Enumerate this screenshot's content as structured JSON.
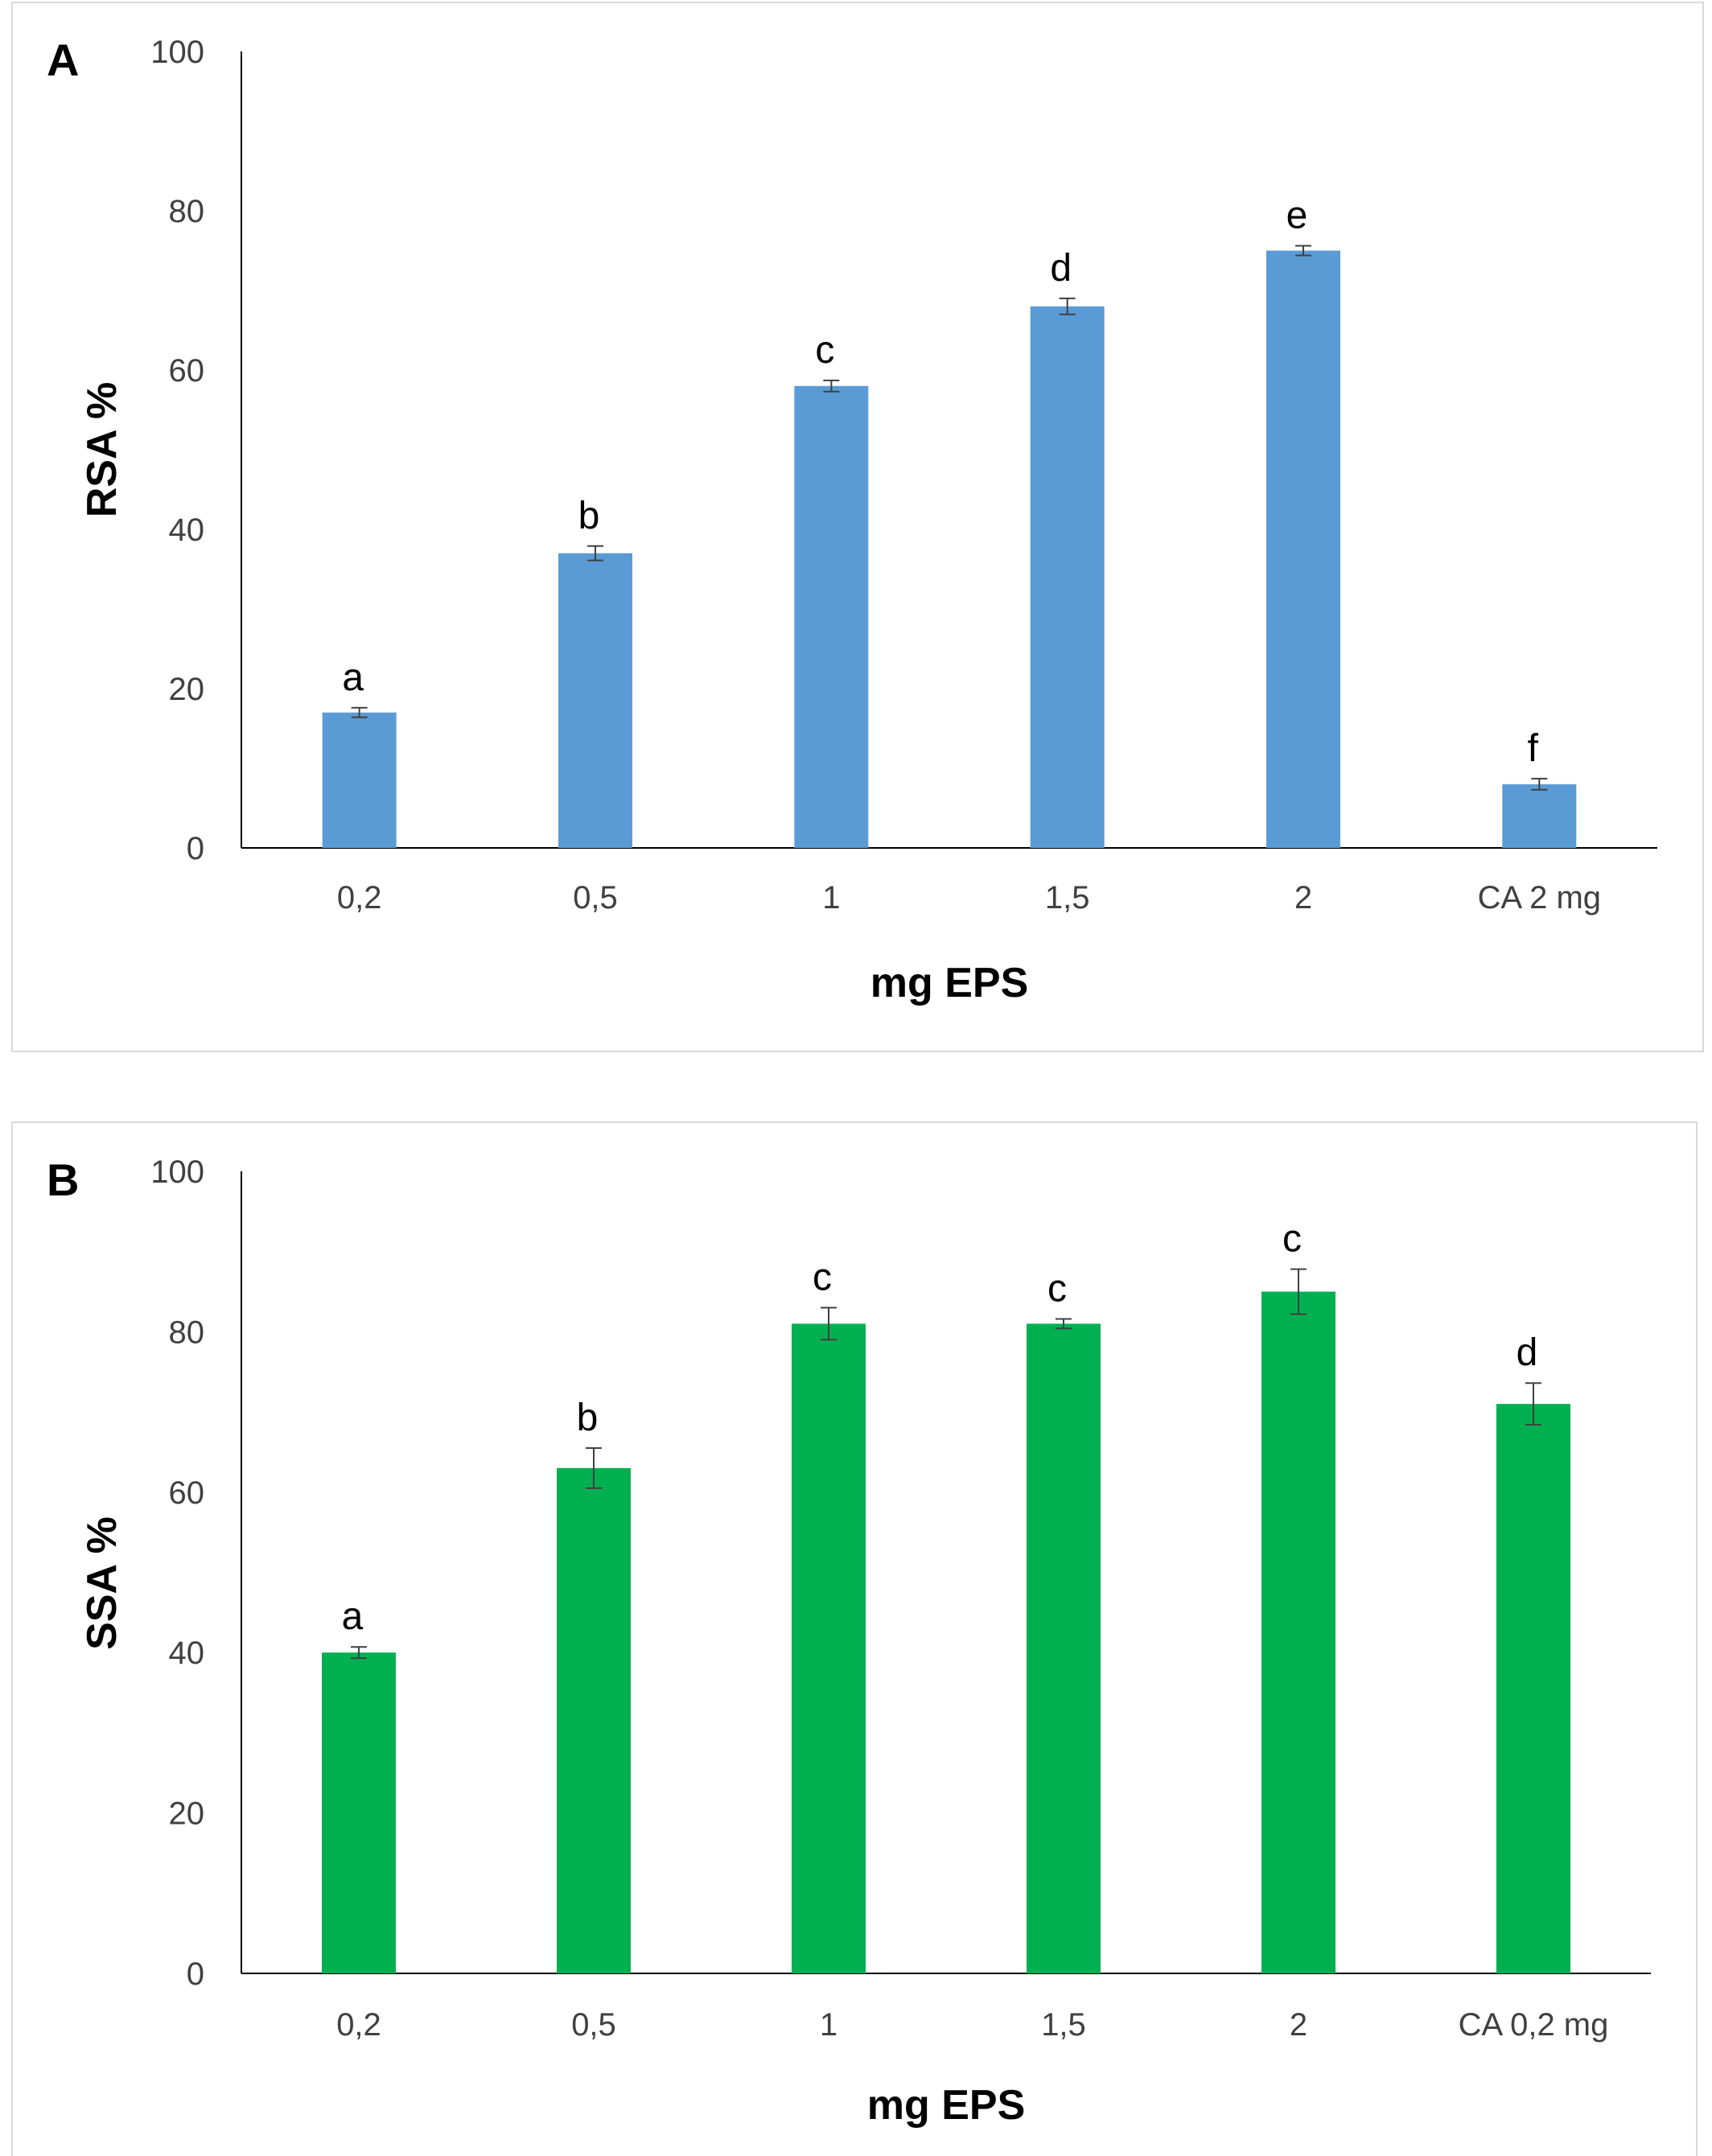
{
  "chart_data": [
    {
      "panel_label": "A",
      "type": "bar",
      "categories": [
        "0,2",
        "0,5",
        "1",
        "1,5",
        "2",
        "CA 2 mg"
      ],
      "series": [
        {
          "values": [
            17,
            37,
            58,
            68,
            75,
            8
          ],
          "error": [
            0.6,
            0.9,
            0.7,
            1.0,
            0.6,
            0.7
          ],
          "color": "#5b9bd5"
        }
      ],
      "annotations": [
        "a",
        "b",
        "c",
        "d",
        "e",
        "f"
      ],
      "xlabel": "mg EPS",
      "ylabel": "RSA %",
      "ylim": [
        0,
        100
      ],
      "yticks": [
        0,
        20,
        40,
        60,
        80,
        100
      ],
      "grid": false,
      "legend": false
    },
    {
      "panel_label": "B",
      "type": "bar",
      "categories": [
        "0,2",
        "0,5",
        "1",
        "1,5",
        "2",
        "CA 0,2 mg"
      ],
      "series": [
        {
          "values": [
            40,
            63,
            81,
            81,
            85,
            71
          ],
          "error": [
            0.7,
            2.5,
            2.0,
            0.6,
            2.8,
            2.6
          ],
          "color": "#00b050"
        }
      ],
      "annotations": [
        "a",
        "b",
        "c",
        "c",
        "c",
        "d"
      ],
      "xlabel": "mg EPS",
      "ylabel": "SSA %",
      "ylim": [
        0,
        100
      ],
      "yticks": [
        0,
        20,
        40,
        60,
        80,
        100
      ],
      "grid": false,
      "legend": false
    }
  ]
}
